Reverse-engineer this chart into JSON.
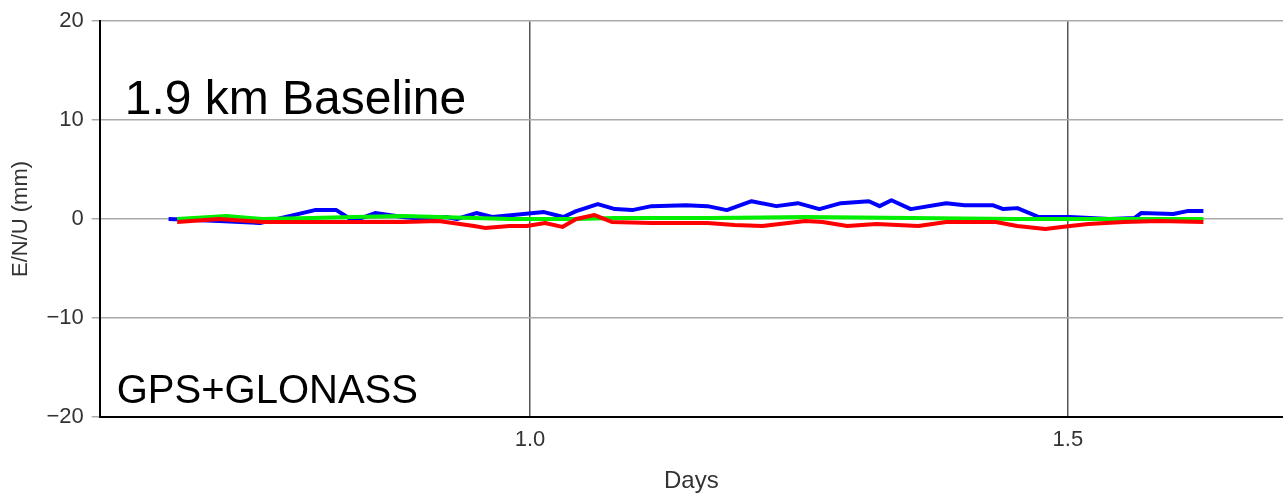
{
  "chart_data": {
    "type": "line",
    "xlabel": "Days",
    "ylabel": "E/N/U (mm)",
    "annotations": [
      "1.9 km Baseline",
      "GPS+GLONASS"
    ],
    "xlim": [
      0.6,
      1.7
    ],
    "xticks": [
      {
        "value": 1,
        "label": "1.0"
      },
      {
        "value": 1.5,
        "label": "1.5"
      }
    ],
    "ylim": [
      -20,
      20
    ],
    "yticks": [
      {
        "value": -20,
        "label": "−20"
      },
      {
        "value": -10,
        "label": "−10"
      },
      0,
      10,
      20
    ],
    "grid": true,
    "series": [
      {
        "color": "#ff0000",
        "x": [
          0.672,
          0.711,
          0.751,
          0.797,
          0.836,
          0.882,
          0.915,
          0.948,
          0.958,
          0.981,
          0.997,
          1.014,
          1.03,
          1.043,
          1.06,
          1.076,
          1.113,
          1.165,
          1.19,
          1.216,
          1.256,
          1.272,
          1.295,
          1.322,
          1.361,
          1.387,
          1.433,
          1.453,
          1.479,
          1.502,
          1.519,
          1.552,
          1.585,
          1.626
        ],
        "values": [
          -0.3,
          0,
          -0.3,
          -0.3,
          -0.3,
          -0.3,
          -0.2,
          -0.7,
          -0.9,
          -0.7,
          -0.7,
          -0.4,
          -0.8,
          0,
          0.4,
          -0.3,
          -0.4,
          -0.4,
          -0.6,
          -0.7,
          -0.2,
          -0.3,
          -0.7,
          -0.5,
          -0.7,
          -0.3,
          -0.3,
          -0.7,
          -1,
          -0.7,
          -0.5,
          -0.3,
          -0.2,
          -0.3
        ]
      },
      {
        "color": "#00ee00",
        "x": [
          0.672,
          0.718,
          0.751,
          0.797,
          0.836,
          0.882,
          0.915,
          0.981,
          1.043,
          1.079,
          1.165,
          1.256,
          1.453,
          1.552,
          1.626
        ],
        "values": [
          0,
          0.3,
          0,
          0.1,
          0.2,
          0.3,
          0.2,
          0,
          0,
          0.1,
          0.1,
          0.2,
          0,
          0,
          0
        ]
      },
      {
        "color": "#0000ff",
        "x": [
          0.664,
          0.711,
          0.749,
          0.8,
          0.82,
          0.836,
          0.856,
          0.882,
          0.902,
          0.922,
          0.932,
          0.95,
          0.965,
          1.013,
          1.031,
          1.043,
          1.063,
          1.079,
          1.095,
          1.113,
          1.145,
          1.165,
          1.183,
          1.206,
          1.229,
          1.249,
          1.269,
          1.289,
          1.315,
          1.325,
          1.336,
          1.354,
          1.387,
          1.404,
          1.43,
          1.44,
          1.453,
          1.473,
          1.502,
          1.539,
          1.562,
          1.568,
          1.598,
          1.611,
          1.626
        ],
        "values": [
          0,
          -0.2,
          -0.4,
          0.9,
          0.9,
          -0.2,
          0.6,
          0.2,
          0,
          0.2,
          0,
          0.6,
          0.2,
          0.7,
          0.2,
          0.8,
          1.5,
          1,
          0.9,
          1.3,
          1.4,
          1.3,
          0.9,
          1.8,
          1.3,
          1.6,
          1,
          1.6,
          1.8,
          1.3,
          1.9,
          1,
          1.6,
          1.4,
          1.4,
          1,
          1.1,
          0.2,
          0.2,
          0,
          0.1,
          0.6,
          0.5,
          0.8,
          0.8
        ]
      }
    ],
    "line_style": "solid"
  }
}
